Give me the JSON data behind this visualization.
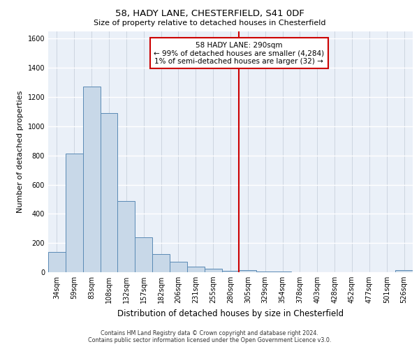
{
  "title1": "58, HADY LANE, CHESTERFIELD, S41 0DF",
  "title2": "Size of property relative to detached houses in Chesterfield",
  "xlabel": "Distribution of detached houses by size in Chesterfield",
  "ylabel": "Number of detached properties",
  "bar_labels": [
    "34sqm",
    "59sqm",
    "83sqm",
    "108sqm",
    "132sqm",
    "157sqm",
    "182sqm",
    "206sqm",
    "231sqm",
    "255sqm",
    "280sqm",
    "305sqm",
    "329sqm",
    "354sqm",
    "378sqm",
    "403sqm",
    "428sqm",
    "452sqm",
    "477sqm",
    "501sqm",
    "526sqm"
  ],
  "bar_values": [
    137,
    815,
    1270,
    1090,
    487,
    238,
    126,
    72,
    40,
    22,
    10,
    12,
    5,
    3,
    2,
    2,
    1,
    0,
    1,
    0,
    14
  ],
  "bar_color": "#c8d8e8",
  "bar_edge_color": "#5a8ab5",
  "vline_color": "#cc0000",
  "annotation_line1": "58 HADY LANE: 290sqm",
  "annotation_line2": "← 99% of detached houses are smaller (4,284)",
  "annotation_line3": "1% of semi-detached houses are larger (32) →",
  "ylim": [
    0,
    1650
  ],
  "bg_color": "#eaf0f8",
  "grid_color": "#c8d0dc",
  "footer1": "Contains HM Land Registry data © Crown copyright and database right 2024.",
  "footer2": "Contains public sector information licensed under the Open Government Licence v3.0."
}
